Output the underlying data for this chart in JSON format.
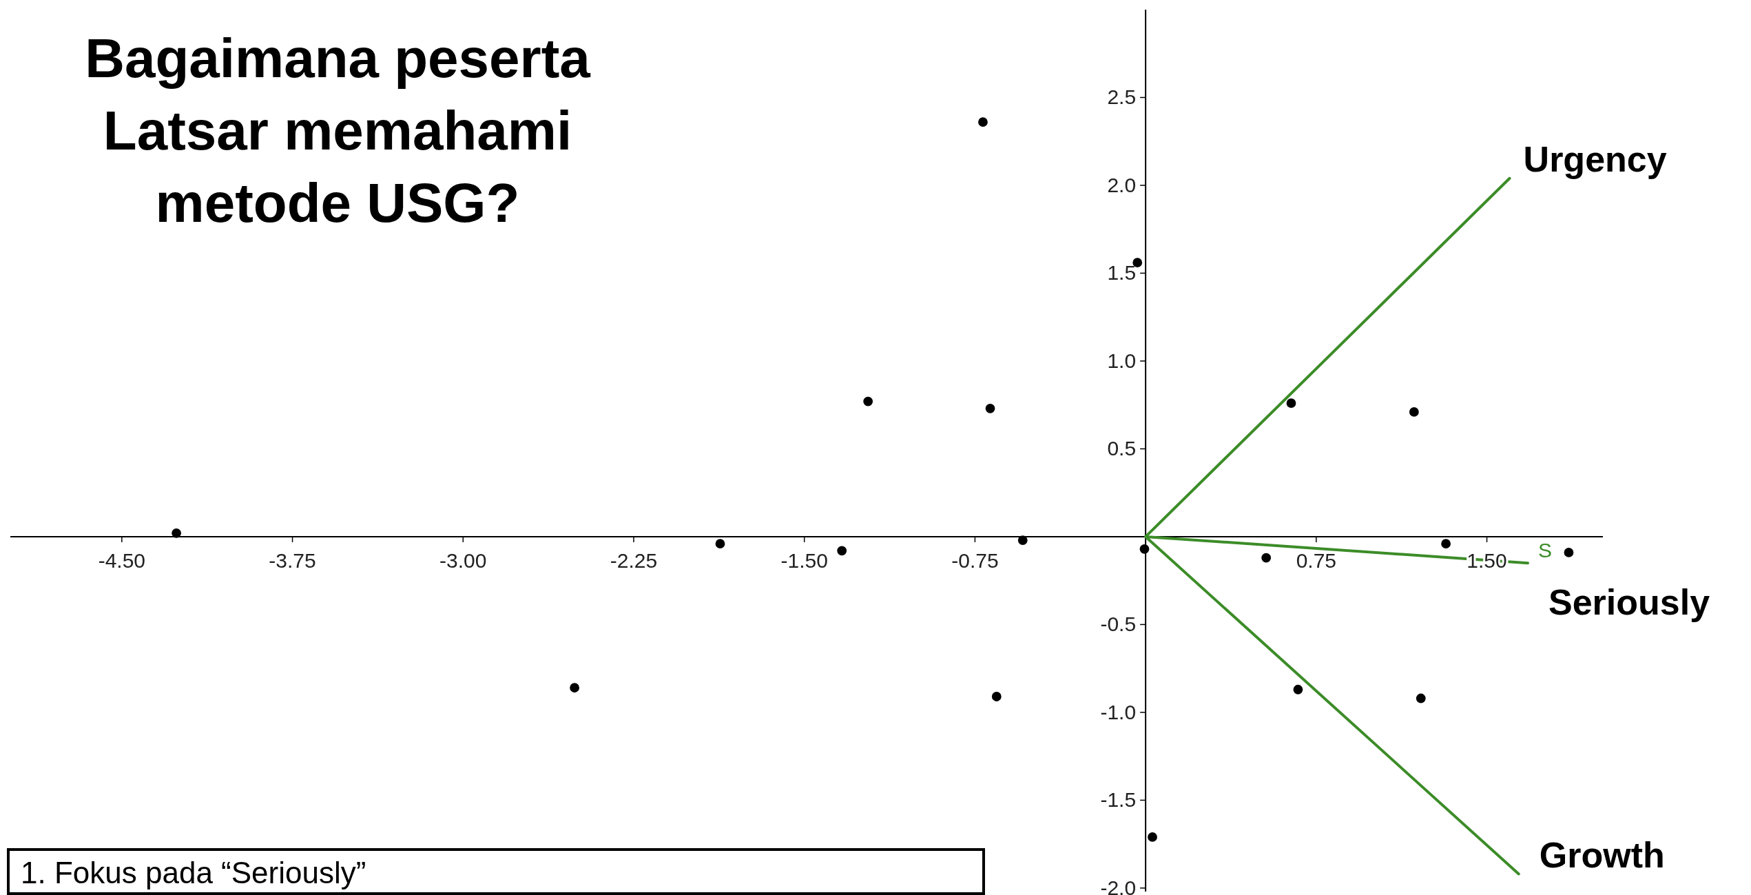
{
  "chart_data": {
    "type": "scatter",
    "title": "Bagaimana peserta\nLatsar memahami\nmetode USG?",
    "xlim": [
      -4.99,
      2.01
    ],
    "ylim": [
      -2.02,
      3.0
    ],
    "xticks": [
      {
        "value": -4.5,
        "label": "-4.50"
      },
      {
        "value": -3.75,
        "label": "-3.75"
      },
      {
        "value": -3.0,
        "label": "-3.00"
      },
      {
        "value": -2.25,
        "label": "-2.25"
      },
      {
        "value": -1.5,
        "label": "-1.50"
      },
      {
        "value": -0.75,
        "label": "-0.75"
      },
      {
        "value": 0.75,
        "label": "0.75"
      },
      {
        "value": 1.5,
        "label": "1.50"
      }
    ],
    "yticks": [
      {
        "value": -2.0,
        "label": "-2.0"
      },
      {
        "value": -1.5,
        "label": "-1.5"
      },
      {
        "value": -1.0,
        "label": "-1.0"
      },
      {
        "value": -0.5,
        "label": "-0.5"
      },
      {
        "value": 0.5,
        "label": "0.5"
      },
      {
        "value": 1.0,
        "label": "1.0"
      },
      {
        "value": 1.5,
        "label": "1.5"
      },
      {
        "value": 2.0,
        "label": "2.0"
      },
      {
        "value": 2.5,
        "label": "2.5"
      }
    ],
    "grid": false,
    "series": [
      {
        "marker": "circle",
        "color": "#000000",
        "x": [
          -4.26,
          -2.51,
          -1.87,
          -1.335,
          -1.22,
          -0.715,
          -0.683,
          -0.655,
          -0.54,
          -0.036,
          -0.005,
          0.03,
          0.53,
          0.64,
          0.67,
          1.18,
          1.21,
          1.32,
          1.86
        ],
        "values": [
          0.02,
          -0.86,
          -0.04,
          -0.08,
          0.77,
          2.36,
          0.73,
          -0.91,
          -0.02,
          1.56,
          -0.07,
          -1.71,
          -0.12,
          0.76,
          -0.87,
          0.71,
          -0.92,
          -0.04,
          -0.09
        ]
      },
      {
        "type": "line",
        "name": "Urgency",
        "color": "#3c8c28",
        "x": [
          0,
          1.6
        ],
        "values": [
          0,
          2.04
        ]
      },
      {
        "type": "line",
        "name": "Seriously",
        "color": "#3c8c28",
        "x": [
          0,
          1.68
        ],
        "values": [
          0,
          -0.15
        ]
      },
      {
        "type": "line",
        "name": "Growth",
        "color": "#3c8c28",
        "x": [
          0,
          1.64
        ],
        "values": [
          0,
          -1.92
        ]
      }
    ],
    "annotations": [
      "S",
      "1. Fokus pada “Seriously”"
    ]
  }
}
